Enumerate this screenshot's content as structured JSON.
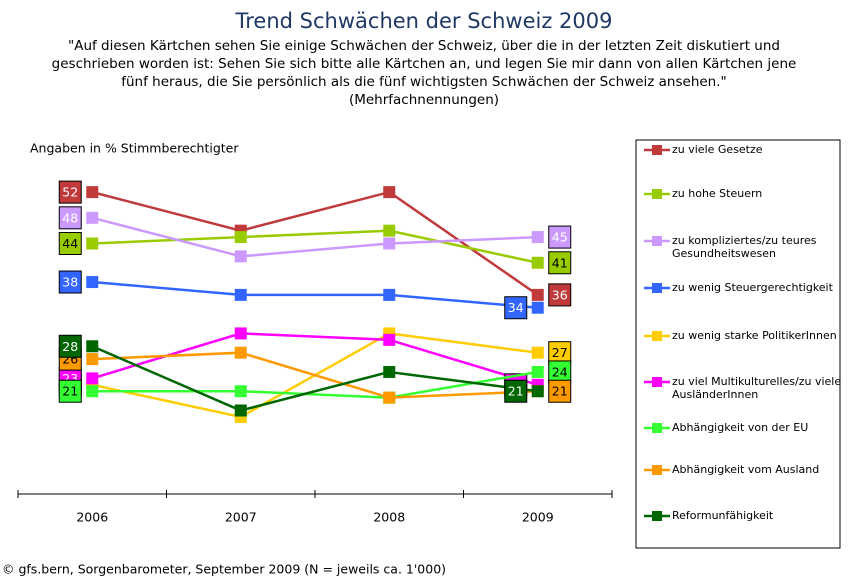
{
  "chart_data": {
    "type": "line",
    "title": "Trend Schwächen der Schweiz 2009",
    "subtitle": [
      "\"Auf diesen Kärtchen sehen Sie einige Schwächen der Schweiz, über die in der letzten Zeit diskutiert und",
      "geschrieben worden ist:  Sehen Sie sich bitte alle Kärtchen an, und legen Sie mir dann von allen Kärtchen jene",
      "fünf heraus, die Sie persönlich als die fünf wichtigsten Schwächen der Schweiz ansehen.\"",
      "(Mehrfachnennungen)"
    ],
    "y_label": "Angaben in % Stimmberechtigter",
    "source": "© gfs.bern, Sorgenbarometer, September 2009 (N = jeweils ca. 1'000)",
    "categories": [
      "2006",
      "2007",
      "2008",
      "2009"
    ],
    "ylim": [
      5,
      57
    ],
    "legend": "right",
    "series": [
      {
        "name": "zu viele Gesetze",
        "color": "#c0393b",
        "values": [
          52,
          46,
          52,
          36
        ]
      },
      {
        "name": "zu hohe Steuern",
        "color": "#99cc00",
        "values": [
          44,
          45,
          46,
          41
        ]
      },
      {
        "name": "zu kompliziertes/zu teures Gesundheitswesen",
        "color": "#cc99ff",
        "values": [
          48,
          42,
          44,
          45
        ]
      },
      {
        "name": "zu wenig Steuergerechtigkeit",
        "color": "#3366ff",
        "values": [
          38,
          36,
          36,
          34
        ]
      },
      {
        "name": "zu wenig starke PolitikerInnen",
        "color": "#ffcc00",
        "values": [
          22,
          17,
          30,
          27
        ]
      },
      {
        "name": "zu viel Multikulturelles/zu viele AusländerInnen",
        "color": "#ff00ff",
        "values": [
          23,
          30,
          29,
          22
        ]
      },
      {
        "name": "Abhängigkeit von der EU",
        "color": "#33ff33",
        "values": [
          21,
          21,
          20,
          24
        ]
      },
      {
        "name": "Abhängigkeit vom Ausland",
        "color": "#ff9900",
        "values": [
          26,
          27,
          20,
          21
        ]
      },
      {
        "name": "Reformunfähigkeit",
        "color": "#006600",
        "values": [
          28,
          18,
          24,
          21
        ]
      }
    ]
  }
}
